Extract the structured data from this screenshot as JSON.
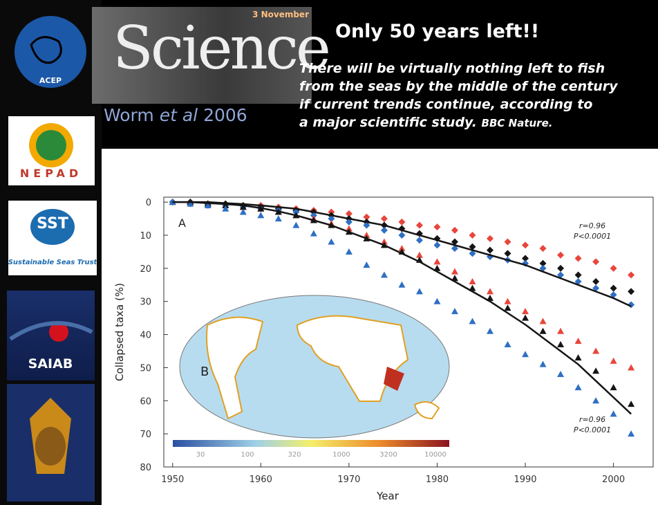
{
  "header": {
    "title": "Only 50 years left!!",
    "quote_lines": [
      "There will be virtually nothing left to fish",
      "from the seas by the middle  of the century",
      "if current trends continue, according to",
      "a major scientific study."
    ],
    "source": "BBC Nature.",
    "magazine": "Science",
    "issue_date": "3 November",
    "citation": {
      "author": "Worm",
      "etal": "et al",
      "year": "2006"
    }
  },
  "sidebar": {
    "logos": [
      "ACEP",
      "NEPAD",
      "SST",
      "Sustainable Seas Trust",
      "SAIAB"
    ]
  },
  "chart_data": {
    "type": "scatter",
    "y_label": "Collapsed taxa (%)",
    "x_label": "Year",
    "x": [
      1950,
      1952,
      1954,
      1956,
      1958,
      1960,
      1962,
      1964,
      1966,
      1968,
      1970,
      1972,
      1974,
      1976,
      1978,
      1980,
      1982,
      1984,
      1986,
      1988,
      1990,
      1992,
      1994,
      1996,
      1998,
      2000,
      2002
    ],
    "series": [
      {
        "marker": "diamond",
        "color": "#e8453c",
        "values": [
          0,
          0,
          0.5,
          0.5,
          1,
          1,
          1.5,
          2,
          2.5,
          3,
          3.5,
          4.5,
          5,
          6,
          7,
          7.5,
          8.5,
          10,
          11,
          12,
          13,
          14,
          16,
          17,
          18,
          20,
          22
        ]
      },
      {
        "marker": "diamond",
        "color": "#151515",
        "values": [
          0,
          0,
          0.5,
          0.5,
          1,
          1.5,
          2,
          2.5,
          3,
          4,
          5,
          6,
          7,
          8,
          9.5,
          11,
          12,
          13.5,
          14.5,
          15.5,
          17,
          18.5,
          20,
          22,
          24,
          26,
          27
        ]
      },
      {
        "marker": "diamond",
        "color": "#2f6fc4",
        "values": [
          0,
          0.5,
          1,
          1,
          1.5,
          2,
          2.5,
          3,
          4,
          5,
          6,
          7,
          8.5,
          10,
          11.5,
          13,
          14,
          15.5,
          16.5,
          17.5,
          18.5,
          20,
          22,
          24,
          26,
          28,
          31
        ]
      },
      {
        "marker": "triangle",
        "color": "#e8453c",
        "values": [
          0,
          0,
          0.5,
          1,
          1.5,
          2,
          3,
          4,
          5,
          6.5,
          8,
          10,
          12,
          14,
          16,
          18,
          21,
          24,
          27,
          30,
          33,
          36,
          39,
          42,
          45,
          48,
          50
        ]
      },
      {
        "marker": "triangle",
        "color": "#151515",
        "values": [
          0,
          0,
          0.5,
          1,
          1.5,
          2,
          3,
          4,
          5.5,
          7,
          9,
          11,
          13,
          15,
          17.5,
          20,
          23,
          26,
          29,
          32,
          35,
          39,
          43,
          47,
          51,
          56,
          61
        ]
      },
      {
        "marker": "triangle",
        "color": "#2f6fc4",
        "values": [
          0,
          0.5,
          1,
          2,
          3,
          4,
          5,
          7,
          9.5,
          12,
          15,
          19,
          22,
          25,
          27,
          30,
          33,
          36,
          39,
          43,
          46,
          49,
          52,
          56,
          60,
          64,
          70
        ]
      },
      {
        "marker": "line",
        "color": "#151515",
        "values": [
          0,
          0,
          0,
          0.3,
          0.6,
          1,
          1.5,
          2,
          3,
          4,
          5,
          6,
          7,
          8.5,
          10,
          11.5,
          13,
          14.5,
          16,
          17.5,
          19,
          21,
          23,
          25,
          27,
          29,
          31.5
        ]
      },
      {
        "marker": "line",
        "color": "#151515",
        "values": [
          0,
          0,
          0.3,
          0.6,
          1,
          1.8,
          2.8,
          4,
          5.5,
          7,
          9,
          11,
          13,
          15.5,
          18,
          21,
          24,
          27,
          30,
          33.5,
          37,
          41,
          45,
          49,
          54,
          59,
          64
        ]
      }
    ],
    "xlim": [
      1949,
      2004.5
    ],
    "xticks": [
      1950,
      1960,
      1970,
      1980,
      1990,
      2000
    ],
    "ylim": [
      -1.5,
      80
    ],
    "yticks": [
      0,
      10,
      20,
      30,
      40,
      50,
      60,
      70,
      80
    ],
    "y_inverted": true,
    "annotations": [
      "A",
      "B",
      "r=0.96",
      "P<0.0001",
      "r=0.96",
      "P<0.0001"
    ],
    "colorbar_labels": [
      "30",
      "100",
      "320",
      "1000",
      "3200",
      "10000"
    ]
  }
}
